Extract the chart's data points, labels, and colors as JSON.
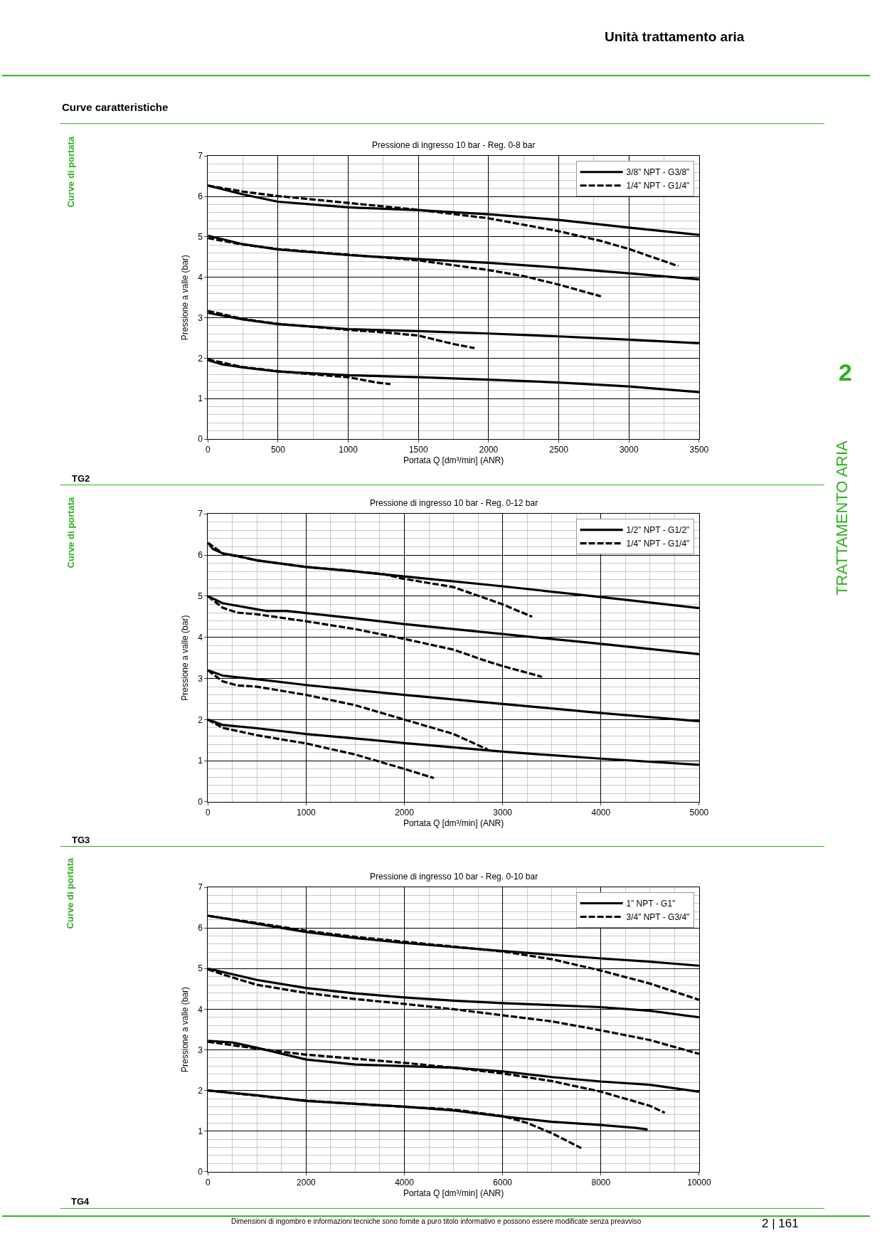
{
  "chart_data": [
    {
      "type": "line",
      "title": "Pressione di ingresso 10 bar - Reg. 0-8 bar",
      "xlabel": "Portata Q [dm³/min] (ANR)",
      "ylabel": "Pressione a valle (bar)",
      "annotations": [
        "Unità trattamento aria",
        "Curve caratteristiche",
        "Curve di portata",
        "TG2",
        "2",
        "TRATTAMENTO ARIA"
      ],
      "xlim": [
        0,
        3500
      ],
      "ylim": [
        0,
        7
      ],
      "xticks": [
        0,
        500,
        1000,
        1500,
        2000,
        2500,
        3000,
        3500
      ],
      "yticks": [
        0,
        1,
        2,
        3,
        4,
        5,
        6,
        7
      ],
      "grid": true,
      "legend": "top right",
      "series": [
        {
          "name": "3/8” NPT - G3/8\"",
          "color": "#000000",
          "line_style": "solid",
          "x": [
            0,
            250,
            500,
            1000,
            1500,
            2000,
            2500,
            3000,
            3500
          ],
          "values": [
            6.27,
            6.05,
            5.87,
            5.73,
            5.66,
            5.56,
            5.42,
            5.23,
            5.05
          ]
        },
        {
          "name": "1/4” NPT - G1/4\"",
          "color": "#000000",
          "line_style": "dashed",
          "x": [
            0,
            250,
            500,
            1000,
            1500,
            2000,
            2500,
            2800,
            3000,
            3350
          ],
          "values": [
            6.27,
            6.12,
            6.01,
            5.84,
            5.67,
            5.46,
            5.14,
            4.9,
            4.7,
            4.28
          ]
        },
        {
          "color": "#000000",
          "line_style": "solid",
          "x": [
            0,
            250,
            500,
            1000,
            1500,
            2000,
            2500,
            3000,
            3500
          ],
          "values": [
            5.03,
            4.82,
            4.69,
            4.55,
            4.45,
            4.36,
            4.24,
            4.1,
            3.95
          ]
        },
        {
          "color": "#000000",
          "line_style": "dashed",
          "x": [
            0,
            250,
            500,
            1000,
            1500,
            2000,
            2250,
            2500,
            2800
          ],
          "values": [
            4.97,
            4.81,
            4.7,
            4.56,
            4.42,
            4.18,
            4.03,
            3.82,
            3.53
          ]
        },
        {
          "color": "#000000",
          "line_style": "solid",
          "x": [
            0,
            250,
            500,
            1000,
            1500,
            2000,
            2500,
            3000,
            3500
          ],
          "values": [
            3.12,
            2.96,
            2.84,
            2.72,
            2.67,
            2.61,
            2.54,
            2.46,
            2.37
          ]
        },
        {
          "color": "#000000",
          "line_style": "dashed",
          "x": [
            0,
            250,
            500,
            1000,
            1250,
            1500,
            1750,
            1900
          ],
          "values": [
            3.17,
            2.97,
            2.85,
            2.7,
            2.64,
            2.56,
            2.35,
            2.25
          ]
        },
        {
          "color": "#000000",
          "line_style": "solid",
          "x": [
            0,
            100,
            250,
            500,
            1000,
            1500,
            2000,
            2500,
            3000,
            3500
          ],
          "values": [
            1.95,
            1.85,
            1.77,
            1.67,
            1.58,
            1.53,
            1.47,
            1.4,
            1.3,
            1.16
          ]
        },
        {
          "color": "#000000",
          "line_style": "dashed",
          "x": [
            0,
            250,
            500,
            750,
            1000,
            1200,
            1300
          ],
          "values": [
            1.97,
            1.78,
            1.68,
            1.6,
            1.53,
            1.4,
            1.36
          ]
        }
      ]
    },
    {
      "type": "line",
      "title": "Pressione di ingresso 10 bar - Reg. 0-12 bar",
      "xlabel": "Portata Q [dm³/min] (ANR)",
      "ylabel": "Pressione a valle (bar)",
      "annotations": [
        "Curve di portata",
        "TG3"
      ],
      "xlim": [
        0,
        5000
      ],
      "ylim": [
        0,
        7
      ],
      "xticks": [
        0,
        1000,
        2000,
        3000,
        4000,
        5000
      ],
      "yticks": [
        0,
        1,
        2,
        3,
        4,
        5,
        6,
        7
      ],
      "grid": true,
      "legend": "top right",
      "series": [
        {
          "name": "1/2” NPT - G1/2\"",
          "color": "#000000",
          "line_style": "solid",
          "x": [
            0,
            50,
            150,
            300,
            500,
            1000,
            1500,
            2000,
            3000,
            4000,
            5000
          ],
          "values": [
            6.3,
            6.15,
            6.04,
            5.98,
            5.87,
            5.71,
            5.6,
            5.48,
            5.24,
            4.98,
            4.71
          ]
        },
        {
          "name": "1/4” NPT - G1/4\"",
          "color": "#000000",
          "line_style": "dashed",
          "x": [
            0,
            150,
            500,
            1000,
            1400,
            1800,
            2000,
            2500,
            3000,
            3300
          ],
          "values": [
            6.3,
            6.04,
            5.87,
            5.71,
            5.63,
            5.53,
            5.42,
            5.22,
            4.8,
            4.5
          ]
        },
        {
          "color": "#000000",
          "line_style": "solid",
          "x": [
            0,
            150,
            500,
            600,
            800,
            1000,
            1500,
            2000,
            3000,
            4000,
            5000
          ],
          "values": [
            5.0,
            4.83,
            4.68,
            4.64,
            4.64,
            4.59,
            4.46,
            4.32,
            4.08,
            3.84,
            3.59
          ]
        },
        {
          "color": "#000000",
          "line_style": "dashed",
          "x": [
            0,
            150,
            300,
            500,
            1000,
            1500,
            2000,
            2500,
            2800,
            3000,
            3400
          ],
          "values": [
            5.0,
            4.72,
            4.6,
            4.56,
            4.39,
            4.2,
            3.96,
            3.7,
            3.45,
            3.3,
            3.04
          ]
        },
        {
          "color": "#000000",
          "line_style": "solid",
          "x": [
            0,
            150,
            300,
            500,
            1000,
            2000,
            3000,
            4000,
            5000
          ],
          "values": [
            3.2,
            3.07,
            3.03,
            2.98,
            2.84,
            2.6,
            2.38,
            2.16,
            1.96
          ]
        },
        {
          "color": "#000000",
          "line_style": "dashed",
          "x": [
            0,
            150,
            300,
            500,
            1000,
            1500,
            2000,
            2500,
            2850
          ],
          "values": [
            3.2,
            2.93,
            2.83,
            2.8,
            2.6,
            2.35,
            2.0,
            1.65,
            1.27
          ]
        },
        {
          "color": "#000000",
          "line_style": "solid",
          "x": [
            0,
            150,
            500,
            1000,
            2000,
            3000,
            4000,
            5000
          ],
          "values": [
            2.0,
            1.87,
            1.79,
            1.65,
            1.43,
            1.22,
            1.05,
            0.9
          ]
        },
        {
          "color": "#000000",
          "line_style": "dashed",
          "x": [
            0,
            150,
            500,
            1000,
            1500,
            2000,
            2300
          ],
          "values": [
            2.0,
            1.8,
            1.62,
            1.42,
            1.15,
            0.8,
            0.58
          ]
        }
      ]
    },
    {
      "type": "line",
      "title": "Pressione di ingresso 10 bar - Reg. 0-10 bar",
      "xlabel": "Portata Q [dm³/min] (ANR)",
      "ylabel": "Pressione a valle (bar)",
      "annotations": [
        "Curve di portata",
        "TG4",
        "Dimensioni di ingombro e informazioni tecniche sono fornite a puro titolo informativo e possono essere modificate senza preavviso",
        "2 | 161"
      ],
      "xlim": [
        0,
        10000
      ],
      "ylim": [
        0,
        7
      ],
      "xticks": [
        0,
        2000,
        4000,
        6000,
        8000,
        10000
      ],
      "yticks": [
        0,
        1,
        2,
        3,
        4,
        5,
        6,
        7
      ],
      "grid": true,
      "legend": "top right",
      "series": [
        {
          "name": "1” NPT - G1\"",
          "color": "#000000",
          "line_style": "solid",
          "x": [
            0,
            1000,
            2000,
            3000,
            4000,
            5000,
            6000,
            7000,
            8000,
            9000,
            10000
          ],
          "values": [
            6.3,
            6.1,
            5.9,
            5.75,
            5.63,
            5.53,
            5.43,
            5.34,
            5.25,
            5.17,
            5.07
          ]
        },
        {
          "name": "3/4” NPT - G3/4\"",
          "color": "#000000",
          "line_style": "dashed",
          "x": [
            0,
            1000,
            2000,
            3000,
            4000,
            5000,
            6000,
            7000,
            8000,
            9000,
            10000
          ],
          "values": [
            6.3,
            6.12,
            5.93,
            5.78,
            5.66,
            5.54,
            5.42,
            5.23,
            4.95,
            4.63,
            4.23
          ]
        },
        {
          "color": "#000000",
          "line_style": "solid",
          "x": [
            0,
            1000,
            2000,
            3000,
            4000,
            5000,
            6000,
            7000,
            8000,
            9000,
            10000
          ],
          "values": [
            5.0,
            4.72,
            4.52,
            4.39,
            4.29,
            4.21,
            4.15,
            4.1,
            4.05,
            3.96,
            3.8
          ]
        },
        {
          "color": "#000000",
          "line_style": "dashed",
          "x": [
            0,
            500,
            1000,
            2000,
            3000,
            4000,
            5000,
            6000,
            7000,
            8000,
            9000,
            10000
          ],
          "values": [
            4.98,
            4.78,
            4.6,
            4.4,
            4.25,
            4.13,
            4.0,
            3.85,
            3.7,
            3.48,
            3.24,
            2.9
          ]
        },
        {
          "color": "#000000",
          "line_style": "solid",
          "x": [
            0,
            500,
            1000,
            2000,
            3000,
            4000,
            5000,
            6000,
            7000,
            8000,
            9000,
            10000
          ],
          "values": [
            3.22,
            3.18,
            3.05,
            2.76,
            2.64,
            2.6,
            2.56,
            2.47,
            2.33,
            2.22,
            2.14,
            1.97
          ]
        },
        {
          "color": "#000000",
          "line_style": "dashed",
          "x": [
            0,
            1000,
            2000,
            3000,
            4000,
            5000,
            6000,
            7000,
            8000,
            9000,
            9300
          ],
          "values": [
            3.2,
            3.03,
            2.88,
            2.78,
            2.68,
            2.56,
            2.42,
            2.23,
            1.97,
            1.62,
            1.45
          ]
        },
        {
          "color": "#000000",
          "line_style": "solid",
          "x": [
            0,
            1000,
            2000,
            3000,
            4000,
            5000,
            6000,
            7000,
            8000,
            8700,
            8950
          ],
          "values": [
            2.0,
            1.88,
            1.74,
            1.67,
            1.6,
            1.51,
            1.36,
            1.23,
            1.15,
            1.08,
            1.04
          ]
        },
        {
          "color": "#000000",
          "line_style": "dashed",
          "x": [
            0,
            1000,
            2000,
            3000,
            4000,
            5000,
            6000,
            6500,
            7000,
            7600
          ],
          "values": [
            2.0,
            1.87,
            1.75,
            1.67,
            1.6,
            1.53,
            1.37,
            1.2,
            0.95,
            0.58
          ]
        }
      ]
    }
  ]
}
